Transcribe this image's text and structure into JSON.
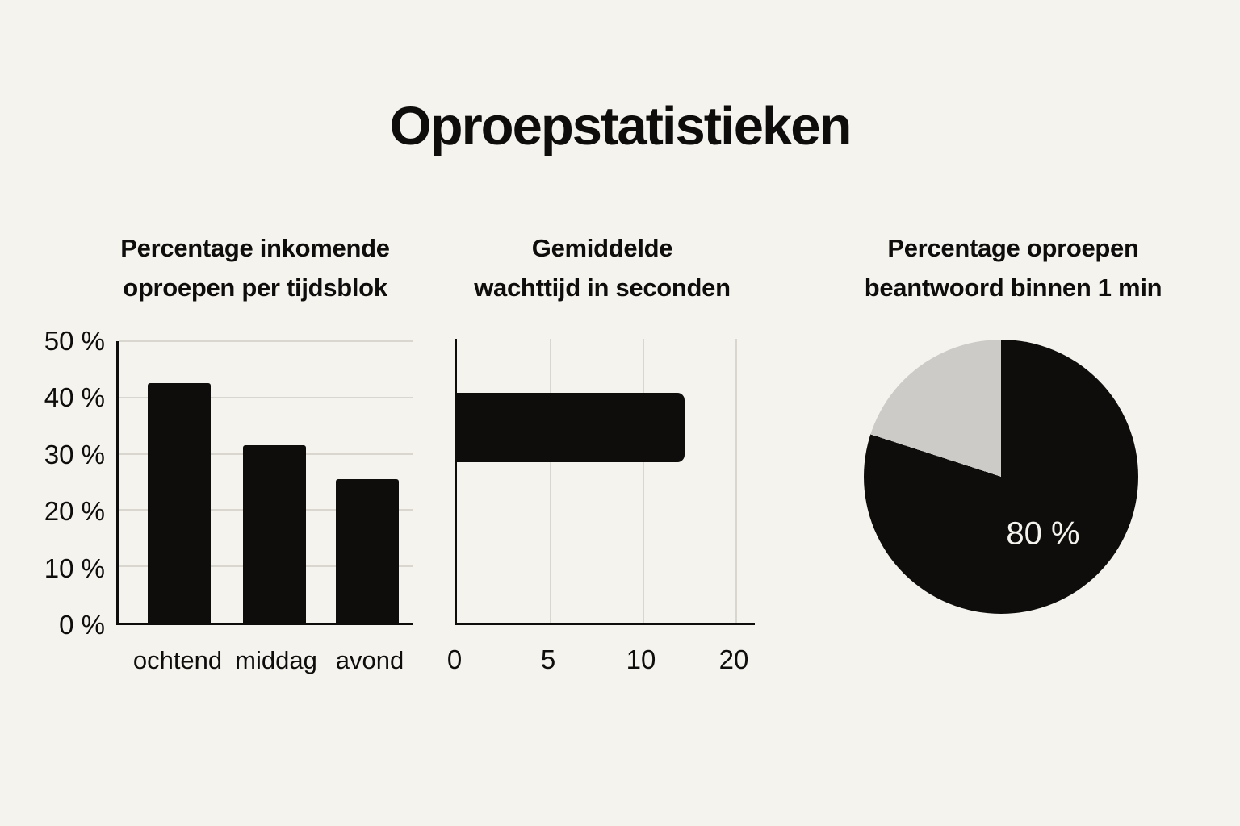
{
  "page": {
    "title": "Oproepstatistieken",
    "background_color": "#f5f3ee",
    "ink_color": "#0e0d0c",
    "gridline_color": "#d9d6d0"
  },
  "chart_data": [
    {
      "type": "bar",
      "orientation": "vertical",
      "title": "Percentage inkomende oproepen per tijdsblok",
      "title_lines": [
        "Percentage inkomende",
        "oproepen per tijdsblok"
      ],
      "categories": [
        "ochtend",
        "middag",
        "avond"
      ],
      "values": [
        42.5,
        31.5,
        25.5
      ],
      "unit": "%",
      "ylim": [
        0,
        50
      ],
      "ytick_labels_top_to_bottom": [
        "50 %",
        "40 %",
        "30 %",
        "20 %",
        "10 %",
        "0 %"
      ],
      "bar_color": "#0e0d0c",
      "grid": true,
      "legend": false
    },
    {
      "type": "bar",
      "orientation": "horizontal",
      "title": "Gemiddelde wachttijd in seconden",
      "title_lines": [
        "Gemiddelde",
        "wachttijd in seconden"
      ],
      "value_seconds": 13,
      "xtick_labels": [
        "0",
        "5",
        "10",
        "20"
      ],
      "bar_color": "#0e0d0c",
      "grid": true,
      "legend": false
    },
    {
      "type": "pie",
      "title": "Percentage oproepen beantwoord binnen 1 min",
      "title_lines": [
        "Percentage oproepen",
        "beantwoord binnen 1 min"
      ],
      "slices": [
        {
          "label": "80 %",
          "value": 80,
          "color": "#0e0d0c"
        },
        {
          "value": 20,
          "color": "#cccbc7"
        }
      ],
      "start_angle_deg": 0,
      "direction": "clockwise",
      "legend": false
    }
  ]
}
